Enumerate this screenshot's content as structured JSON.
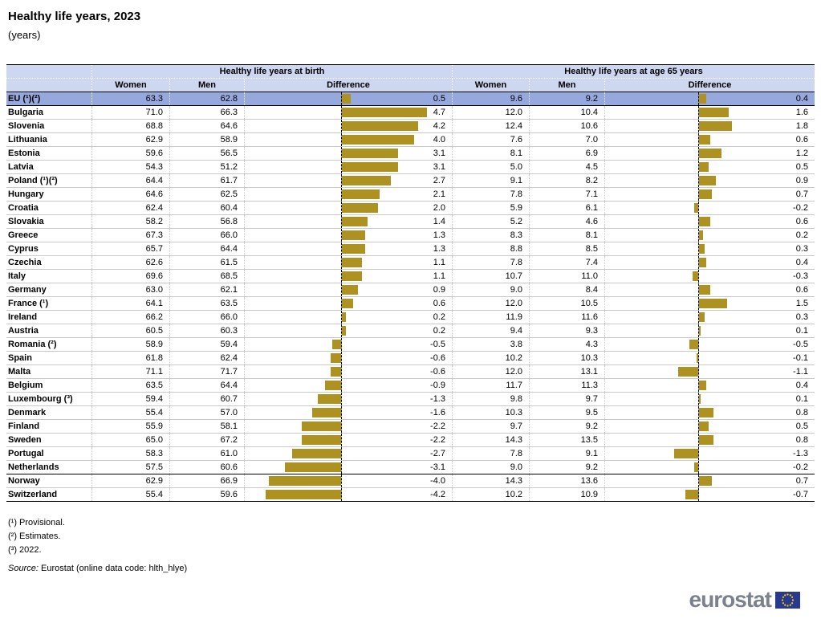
{
  "chart_data": {
    "type": "table",
    "title": "Healthy life years, 2023",
    "subtitle": "(years)",
    "bar_type": "bar",
    "bar_color": "#AD9221",
    "highlight_row_color": "#96A9DE",
    "header_color": "#CDD7F0",
    "sections": [
      {
        "label": "Healthy life years at birth",
        "columns": [
          "Women",
          "Men",
          "Difference"
        ]
      },
      {
        "label": "Healthy life years at age 65 years",
        "columns": [
          "Women",
          "Men",
          "Difference"
        ]
      }
    ],
    "rows": [
      {
        "label": "EU (¹)(²)",
        "highlight": true,
        "efta": false,
        "birth": {
          "women": 63.3,
          "men": 62.8,
          "difference": 0.5
        },
        "age65": {
          "women": 9.6,
          "men": 9.2,
          "difference": 0.4
        }
      },
      {
        "label": "Bulgaria",
        "highlight": false,
        "efta": false,
        "birth": {
          "women": 71.0,
          "men": 66.3,
          "difference": 4.7
        },
        "age65": {
          "women": 12.0,
          "men": 10.4,
          "difference": 1.6
        }
      },
      {
        "label": "Slovenia",
        "highlight": false,
        "efta": false,
        "birth": {
          "women": 68.8,
          "men": 64.6,
          "difference": 4.2
        },
        "age65": {
          "women": 12.4,
          "men": 10.6,
          "difference": 1.8
        }
      },
      {
        "label": "Lithuania",
        "highlight": false,
        "efta": false,
        "birth": {
          "women": 62.9,
          "men": 58.9,
          "difference": 4.0
        },
        "age65": {
          "women": 7.6,
          "men": 7.0,
          "difference": 0.6
        }
      },
      {
        "label": "Estonia",
        "highlight": false,
        "efta": false,
        "birth": {
          "women": 59.6,
          "men": 56.5,
          "difference": 3.1
        },
        "age65": {
          "women": 8.1,
          "men": 6.9,
          "difference": 1.2
        }
      },
      {
        "label": "Latvia",
        "highlight": false,
        "efta": false,
        "birth": {
          "women": 54.3,
          "men": 51.2,
          "difference": 3.1
        },
        "age65": {
          "women": 5.0,
          "men": 4.5,
          "difference": 0.5
        }
      },
      {
        "label": "Poland (¹)(²)",
        "highlight": false,
        "efta": false,
        "birth": {
          "women": 64.4,
          "men": 61.7,
          "difference": 2.7
        },
        "age65": {
          "women": 9.1,
          "men": 8.2,
          "difference": 0.9
        }
      },
      {
        "label": "Hungary",
        "highlight": false,
        "efta": false,
        "birth": {
          "women": 64.6,
          "men": 62.5,
          "difference": 2.1
        },
        "age65": {
          "women": 7.8,
          "men": 7.1,
          "difference": 0.7
        }
      },
      {
        "label": "Croatia",
        "highlight": false,
        "efta": false,
        "birth": {
          "women": 62.4,
          "men": 60.4,
          "difference": 2.0
        },
        "age65": {
          "women": 5.9,
          "men": 6.1,
          "difference": -0.2
        }
      },
      {
        "label": "Slovakia",
        "highlight": false,
        "efta": false,
        "birth": {
          "women": 58.2,
          "men": 56.8,
          "difference": 1.4
        },
        "age65": {
          "women": 5.2,
          "men": 4.6,
          "difference": 0.6
        }
      },
      {
        "label": "Greece",
        "highlight": false,
        "efta": false,
        "birth": {
          "women": 67.3,
          "men": 66.0,
          "difference": 1.3
        },
        "age65": {
          "women": 8.3,
          "men": 8.1,
          "difference": 0.2
        }
      },
      {
        "label": "Cyprus",
        "highlight": false,
        "efta": false,
        "birth": {
          "women": 65.7,
          "men": 64.4,
          "difference": 1.3
        },
        "age65": {
          "women": 8.8,
          "men": 8.5,
          "difference": 0.3
        }
      },
      {
        "label": "Czechia",
        "highlight": false,
        "efta": false,
        "birth": {
          "women": 62.6,
          "men": 61.5,
          "difference": 1.1
        },
        "age65": {
          "women": 7.8,
          "men": 7.4,
          "difference": 0.4
        }
      },
      {
        "label": "Italy",
        "highlight": false,
        "efta": false,
        "birth": {
          "women": 69.6,
          "men": 68.5,
          "difference": 1.1
        },
        "age65": {
          "women": 10.7,
          "men": 11.0,
          "difference": -0.3
        }
      },
      {
        "label": "Germany",
        "highlight": false,
        "efta": false,
        "birth": {
          "women": 63.0,
          "men": 62.1,
          "difference": 0.9
        },
        "age65": {
          "women": 9.0,
          "men": 8.4,
          "difference": 0.6
        }
      },
      {
        "label": "France (¹)",
        "highlight": false,
        "efta": false,
        "birth": {
          "women": 64.1,
          "men": 63.5,
          "difference": 0.6
        },
        "age65": {
          "women": 12.0,
          "men": 10.5,
          "difference": 1.5
        }
      },
      {
        "label": "Ireland",
        "highlight": false,
        "efta": false,
        "birth": {
          "women": 66.2,
          "men": 66.0,
          "difference": 0.2
        },
        "age65": {
          "women": 11.9,
          "men": 11.6,
          "difference": 0.3
        }
      },
      {
        "label": "Austria",
        "highlight": false,
        "efta": false,
        "birth": {
          "women": 60.5,
          "men": 60.3,
          "difference": 0.2
        },
        "age65": {
          "women": 9.4,
          "men": 9.3,
          "difference": 0.1
        }
      },
      {
        "label": "Romania (²)",
        "highlight": false,
        "efta": false,
        "birth": {
          "women": 58.9,
          "men": 59.4,
          "difference": -0.5
        },
        "age65": {
          "women": 3.8,
          "men": 4.3,
          "difference": -0.5
        }
      },
      {
        "label": "Spain",
        "highlight": false,
        "efta": false,
        "birth": {
          "women": 61.8,
          "men": 62.4,
          "difference": -0.6
        },
        "age65": {
          "women": 10.2,
          "men": 10.3,
          "difference": -0.1
        }
      },
      {
        "label": "Malta",
        "highlight": false,
        "efta": false,
        "birth": {
          "women": 71.1,
          "men": 71.7,
          "difference": -0.6
        },
        "age65": {
          "women": 12.0,
          "men": 13.1,
          "difference": -1.1
        }
      },
      {
        "label": "Belgium",
        "highlight": false,
        "efta": false,
        "birth": {
          "women": 63.5,
          "men": 64.4,
          "difference": -0.9
        },
        "age65": {
          "women": 11.7,
          "men": 11.3,
          "difference": 0.4
        }
      },
      {
        "label": "Luxembourg (³)",
        "highlight": false,
        "efta": false,
        "birth": {
          "women": 59.4,
          "men": 60.7,
          "difference": -1.3
        },
        "age65": {
          "women": 9.8,
          "men": 9.7,
          "difference": 0.1
        }
      },
      {
        "label": "Denmark",
        "highlight": false,
        "efta": false,
        "birth": {
          "women": 55.4,
          "men": 57.0,
          "difference": -1.6
        },
        "age65": {
          "women": 10.3,
          "men": 9.5,
          "difference": 0.8
        }
      },
      {
        "label": "Finland",
        "highlight": false,
        "efta": false,
        "birth": {
          "women": 55.9,
          "men": 58.1,
          "difference": -2.2
        },
        "age65": {
          "women": 9.7,
          "men": 9.2,
          "difference": 0.5
        }
      },
      {
        "label": "Sweden",
        "highlight": false,
        "efta": false,
        "birth": {
          "women": 65.0,
          "men": 67.2,
          "difference": -2.2
        },
        "age65": {
          "women": 14.3,
          "men": 13.5,
          "difference": 0.8
        }
      },
      {
        "label": "Portugal",
        "highlight": false,
        "efta": false,
        "birth": {
          "women": 58.3,
          "men": 61.0,
          "difference": -2.7
        },
        "age65": {
          "women": 7.8,
          "men": 9.1,
          "difference": -1.3
        }
      },
      {
        "label": "Netherlands",
        "highlight": false,
        "efta": false,
        "birth": {
          "women": 57.5,
          "men": 60.6,
          "difference": -3.1
        },
        "age65": {
          "women": 9.0,
          "men": 9.2,
          "difference": -0.2
        }
      },
      {
        "label": "Norway",
        "highlight": false,
        "efta": true,
        "birth": {
          "women": 62.9,
          "men": 66.9,
          "difference": -4.0
        },
        "age65": {
          "women": 14.3,
          "men": 13.6,
          "difference": 0.7
        }
      },
      {
        "label": "Switzerland",
        "highlight": false,
        "efta": true,
        "birth": {
          "women": 55.4,
          "men": 59.6,
          "difference": -4.2
        },
        "age65": {
          "women": 10.2,
          "men": 10.9,
          "difference": -0.7
        }
      }
    ]
  },
  "footnotes": [
    "(¹) Provisional.",
    "(²) Estimates.",
    "(³) 2022."
  ],
  "source": {
    "label": "Source:",
    "text": "Eurostat (online data code: hlth_hlye)"
  },
  "logo": {
    "text": "eurostat"
  }
}
